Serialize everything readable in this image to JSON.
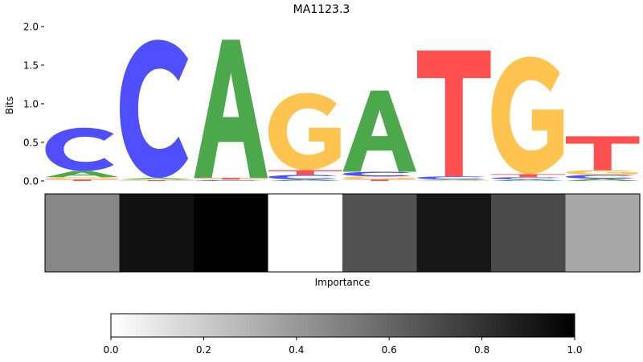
{
  "chart_data": [
    {
      "type": "sequence-logo",
      "title": "MA1123.3",
      "ylabel": "Bits",
      "ylim": [
        0,
        2.0
      ],
      "yticks": [
        "0.0",
        "0.5",
        "1.0",
        "1.5",
        "2.0"
      ],
      "positions": [
        {
          "stack": [
            {
              "base": "T",
              "bits": 0.02
            },
            {
              "base": "G",
              "bits": 0.03
            },
            {
              "base": "A",
              "bits": 0.08
            },
            {
              "base": "C",
              "bits": 0.56
            }
          ]
        },
        {
          "stack": [
            {
              "base": "T",
              "bits": 0.01
            },
            {
              "base": "G",
              "bits": 0.01
            },
            {
              "base": "A",
              "bits": 0.02
            },
            {
              "base": "C",
              "bits": 1.79
            }
          ]
        },
        {
          "stack": [
            {
              "base": "C",
              "bits": 0.01
            },
            {
              "base": "G",
              "bits": 0.01
            },
            {
              "base": "T",
              "bits": 0.02
            },
            {
              "base": "A",
              "bits": 1.79
            }
          ]
        },
        {
          "stack": [
            {
              "base": "A",
              "bits": 0.02
            },
            {
              "base": "C",
              "bits": 0.06
            },
            {
              "base": "T",
              "bits": 0.06
            },
            {
              "base": "G",
              "bits": 1.0
            }
          ]
        },
        {
          "stack": [
            {
              "base": "T",
              "bits": 0.02
            },
            {
              "base": "G",
              "bits": 0.04
            },
            {
              "base": "C",
              "bits": 0.06
            },
            {
              "base": "A",
              "bits": 1.05
            }
          ]
        },
        {
          "stack": [
            {
              "base": "G",
              "bits": 0.01
            },
            {
              "base": "A",
              "bits": 0.01
            },
            {
              "base": "C",
              "bits": 0.04
            },
            {
              "base": "T",
              "bits": 1.63
            }
          ]
        },
        {
          "stack": [
            {
              "base": "A",
              "bits": 0.02
            },
            {
              "base": "C",
              "bits": 0.03
            },
            {
              "base": "T",
              "bits": 0.04
            },
            {
              "base": "G",
              "bits": 1.52
            }
          ]
        },
        {
          "stack": [
            {
              "base": "A",
              "bits": 0.03
            },
            {
              "base": "C",
              "bits": 0.05
            },
            {
              "base": "G",
              "bits": 0.06
            },
            {
              "base": "T",
              "bits": 0.44
            }
          ]
        }
      ],
      "base_colors": {
        "A": "#4ba84b",
        "C": "#4f4fff",
        "G": "#ffc34f",
        "T": "#ff4f4f"
      }
    },
    {
      "type": "heatmap",
      "xlabel": "Importance",
      "values": [
        0.47,
        0.93,
        1.0,
        0.0,
        0.68,
        0.91,
        0.71,
        0.34
      ],
      "colormap": "Greys",
      "colorbar": {
        "range": [
          0,
          1
        ],
        "ticks": [
          "0.0",
          "0.2",
          "0.4",
          "0.6",
          "0.8",
          "1.0"
        ]
      }
    }
  ]
}
